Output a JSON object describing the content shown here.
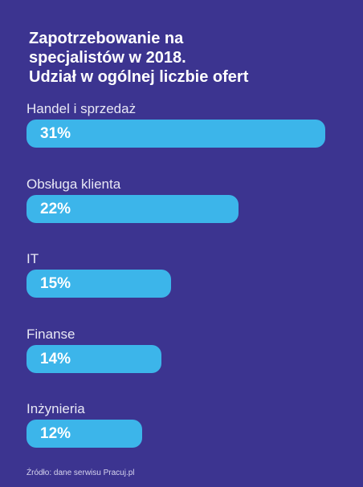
{
  "chart_data": {
    "type": "bar",
    "orientation": "horizontal",
    "title_lines": [
      "Zapotrzebowanie na",
      "specjalistów w 2018.",
      "Udział w ogólnej liczbie ofert"
    ],
    "categories": [
      "Handel i sprzedaż",
      "Obsługa klienta",
      "IT",
      "Finanse",
      "Inżynieria"
    ],
    "values": [
      31,
      22,
      15,
      14,
      12
    ],
    "value_labels": [
      "31%",
      "22%",
      "15%",
      "14%",
      "12%"
    ],
    "unit": "%",
    "bar_color": "#3cb5ea",
    "background_color": "#3c3490",
    "grid": false
  },
  "footer": {
    "source": "Źródło: dane serwisu Pracuj.pl"
  }
}
